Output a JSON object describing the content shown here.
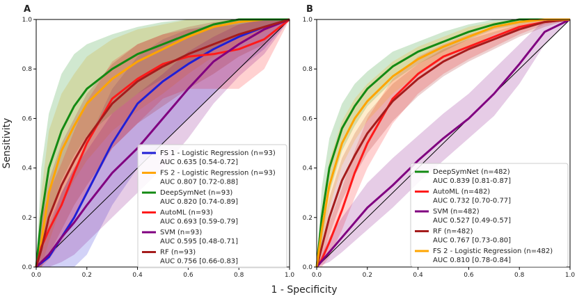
{
  "figure": {
    "shared_ylabel": "Sensitivity",
    "shared_xlabel": "1 - Specificity"
  },
  "chart_data": [
    {
      "panel": "A",
      "type": "line",
      "title": "",
      "xlabel": "1 - Specificity",
      "ylabel": "Sensitivity",
      "xlim": [
        0,
        1
      ],
      "ylim": [
        0,
        1
      ],
      "xticks": [
        "0.0",
        "0.2",
        "0.4",
        "0.6",
        "0.8",
        "1.0"
      ],
      "yticks": [
        "0.0",
        "0.2",
        "0.4",
        "0.6",
        "0.8",
        "1.0"
      ],
      "legend_position": "bottom-right",
      "diagonal": true,
      "series": [
        {
          "name": "FS 1 - Logistic Regression (n=93)",
          "auc": "AUC 0.635 [0.54-0.72]",
          "color": "#1f1fd6",
          "x": [
            0,
            0.05,
            0.1,
            0.15,
            0.2,
            0.3,
            0.4,
            0.5,
            0.6,
            0.7,
            0.8,
            0.9,
            1.0
          ],
          "y": [
            0,
            0.04,
            0.12,
            0.2,
            0.3,
            0.5,
            0.66,
            0.75,
            0.82,
            0.88,
            0.93,
            0.97,
            1.0
          ],
          "lower": [
            0,
            0,
            0,
            0,
            0.05,
            0.25,
            0.4,
            0.5,
            0.6,
            0.7,
            0.8,
            0.88,
            1.0
          ],
          "upper": [
            0,
            0.15,
            0.3,
            0.4,
            0.5,
            0.72,
            0.85,
            0.92,
            0.96,
            0.98,
            1.0,
            1.0,
            1.0
          ]
        },
        {
          "name": "FS 2 - Logistic Regression (n=93)",
          "auc": "AUC 0.807 [0.72-0.88]",
          "color": "#ffa500",
          "x": [
            0,
            0.02,
            0.05,
            0.1,
            0.15,
            0.2,
            0.3,
            0.4,
            0.5,
            0.6,
            0.7,
            0.8,
            0.9,
            1.0
          ],
          "y": [
            0,
            0.1,
            0.3,
            0.47,
            0.57,
            0.66,
            0.76,
            0.83,
            0.88,
            0.93,
            0.97,
            0.99,
            1.0,
            1.0
          ],
          "lower": [
            0,
            0,
            0.1,
            0.25,
            0.35,
            0.43,
            0.55,
            0.63,
            0.7,
            0.78,
            0.85,
            0.9,
            0.95,
            1.0
          ],
          "upper": [
            0,
            0.3,
            0.55,
            0.7,
            0.78,
            0.85,
            0.92,
            0.96,
            0.98,
            1.0,
            1.0,
            1.0,
            1.0,
            1.0
          ]
        },
        {
          "name": "DeepSymNet (n=93)",
          "auc": "AUC 0.820 [0.74-0.89]",
          "color": "#138a13",
          "x": [
            0,
            0.02,
            0.05,
            0.1,
            0.15,
            0.2,
            0.3,
            0.4,
            0.5,
            0.6,
            0.7,
            0.8,
            0.9,
            1.0
          ],
          "y": [
            0,
            0.2,
            0.4,
            0.55,
            0.65,
            0.72,
            0.8,
            0.86,
            0.9,
            0.94,
            0.98,
            1.0,
            1.0,
            1.0
          ],
          "lower": [
            0,
            0.05,
            0.2,
            0.35,
            0.45,
            0.53,
            0.62,
            0.7,
            0.76,
            0.82,
            0.88,
            0.93,
            0.97,
            1.0
          ],
          "upper": [
            0,
            0.4,
            0.62,
            0.78,
            0.86,
            0.9,
            0.94,
            0.97,
            0.99,
            1.0,
            1.0,
            1.0,
            1.0,
            1.0
          ]
        },
        {
          "name": "AutoML (n=93)",
          "auc": "AUC 0.693 [0.59-0.79]",
          "color": "#ff1a1a",
          "x": [
            0,
            0.02,
            0.05,
            0.1,
            0.15,
            0.2,
            0.3,
            0.4,
            0.5,
            0.6,
            0.7,
            0.8,
            0.9,
            1.0
          ],
          "y": [
            0,
            0.08,
            0.15,
            0.25,
            0.38,
            0.5,
            0.68,
            0.76,
            0.82,
            0.85,
            0.86,
            0.88,
            0.92,
            1.0
          ],
          "lower": [
            0,
            0,
            0.03,
            0.1,
            0.2,
            0.3,
            0.48,
            0.58,
            0.68,
            0.72,
            0.72,
            0.72,
            0.8,
            1.0
          ],
          "upper": [
            0,
            0.2,
            0.3,
            0.42,
            0.55,
            0.67,
            0.83,
            0.9,
            0.94,
            0.96,
            0.97,
            0.98,
            1.0,
            1.0
          ]
        },
        {
          "name": "SVM (n=93)",
          "auc": "AUC 0.595 [0.48-0.71]",
          "color": "#800080",
          "x": [
            0,
            0.05,
            0.1,
            0.15,
            0.2,
            0.3,
            0.4,
            0.5,
            0.6,
            0.7,
            0.8,
            0.9,
            1.0
          ],
          "y": [
            0,
            0.05,
            0.12,
            0.18,
            0.25,
            0.38,
            0.48,
            0.6,
            0.72,
            0.83,
            0.9,
            0.96,
            1.0
          ],
          "lower": [
            0,
            0,
            0.02,
            0.05,
            0.1,
            0.2,
            0.3,
            0.4,
            0.52,
            0.66,
            0.77,
            0.86,
            1.0
          ],
          "upper": [
            0,
            0.18,
            0.3,
            0.4,
            0.47,
            0.62,
            0.7,
            0.78,
            0.87,
            0.93,
            0.98,
            1.0,
            1.0
          ]
        },
        {
          "name": "RF (n=93)",
          "auc": "AUC 0.756 [0.66-0.83]",
          "color": "#a51c1c",
          "x": [
            0,
            0.02,
            0.05,
            0.1,
            0.15,
            0.2,
            0.3,
            0.4,
            0.5,
            0.6,
            0.7,
            0.8,
            0.9,
            1.0
          ],
          "y": [
            0,
            0.07,
            0.2,
            0.33,
            0.43,
            0.52,
            0.66,
            0.75,
            0.81,
            0.86,
            0.9,
            0.94,
            0.97,
            1.0
          ],
          "lower": [
            0,
            0,
            0.05,
            0.15,
            0.25,
            0.33,
            0.48,
            0.58,
            0.65,
            0.72,
            0.78,
            0.85,
            0.9,
            1.0
          ],
          "upper": [
            0,
            0.2,
            0.35,
            0.5,
            0.6,
            0.7,
            0.82,
            0.9,
            0.94,
            0.97,
            0.99,
            1.0,
            1.0,
            1.0
          ]
        }
      ],
      "legend": [
        {
          "label": "FS 1 - Logistic Regression (n=93)",
          "auc": "AUC 0.635 [0.54-0.72]",
          "color": "#1f1fd6"
        },
        {
          "label": "FS 2 - Logistic Regression (n=93)",
          "auc": "AUC 0.807 [0.72-0.88]",
          "color": "#ffa500"
        },
        {
          "label": "DeepSymNet (n=93)",
          "auc": "AUC 0.820 [0.74-0.89]",
          "color": "#138a13"
        },
        {
          "label": "AutoML (n=93)",
          "auc": "AUC 0.693 [0.59-0.79]",
          "color": "#ff1a1a"
        },
        {
          "label": "SVM (n=93)",
          "auc": "AUC 0.595 [0.48-0.71]",
          "color": "#800080"
        },
        {
          "label": "RF (n=93)",
          "auc": "AUC 0.756 [0.66-0.83]",
          "color": "#a51c1c"
        }
      ]
    },
    {
      "panel": "B",
      "type": "line",
      "title": "",
      "xlabel": "1 - Specificity",
      "ylabel": "Sensitivity",
      "xlim": [
        0,
        1
      ],
      "ylim": [
        0,
        1
      ],
      "xticks": [
        "0.0",
        "0.2",
        "0.4",
        "0.6",
        "0.8",
        "1.0"
      ],
      "yticks": [
        "0.0",
        "0.2",
        "0.4",
        "0.6",
        "0.8",
        "1.0"
      ],
      "legend_position": "bottom-right",
      "diagonal": true,
      "series": [
        {
          "name": "DeepSymNet (n=482)",
          "auc": "AUC 0.839 [0.81-0.87]",
          "color": "#138a13",
          "x": [
            0,
            0.02,
            0.05,
            0.1,
            0.15,
            0.2,
            0.3,
            0.4,
            0.5,
            0.6,
            0.7,
            0.8,
            0.9,
            1.0
          ],
          "y": [
            0,
            0.2,
            0.4,
            0.56,
            0.65,
            0.72,
            0.81,
            0.87,
            0.91,
            0.95,
            0.98,
            1.0,
            1.0,
            1.0
          ],
          "lower": [
            0,
            0.1,
            0.3,
            0.47,
            0.57,
            0.65,
            0.75,
            0.82,
            0.87,
            0.92,
            0.96,
            0.98,
            1.0,
            1.0
          ],
          "upper": [
            0,
            0.32,
            0.52,
            0.66,
            0.74,
            0.79,
            0.87,
            0.91,
            0.95,
            0.98,
            1.0,
            1.0,
            1.0,
            1.0
          ]
        },
        {
          "name": "AutoML (n=482)",
          "auc": "AUC 0.732 [0.70-0.77]",
          "color": "#ff1a1a",
          "x": [
            0,
            0.02,
            0.05,
            0.1,
            0.15,
            0.2,
            0.3,
            0.4,
            0.5,
            0.6,
            0.7,
            0.8,
            0.9,
            1.0
          ],
          "y": [
            0,
            0.03,
            0.1,
            0.23,
            0.38,
            0.5,
            0.68,
            0.78,
            0.85,
            0.89,
            0.93,
            0.97,
            0.99,
            1.0
          ],
          "lower": [
            0,
            0,
            0.04,
            0.15,
            0.28,
            0.4,
            0.58,
            0.7,
            0.78,
            0.84,
            0.89,
            0.94,
            0.98,
            1.0
          ],
          "upper": [
            0,
            0.08,
            0.18,
            0.32,
            0.47,
            0.6,
            0.76,
            0.85,
            0.9,
            0.94,
            0.97,
            0.99,
            1.0,
            1.0
          ]
        },
        {
          "name": "SVM (n=482)",
          "auc": "AUC 0.527 [0.49-0.57]",
          "color": "#800080",
          "x": [
            0,
            0.05,
            0.1,
            0.2,
            0.3,
            0.4,
            0.5,
            0.6,
            0.7,
            0.8,
            0.9,
            1.0
          ],
          "y": [
            0,
            0.06,
            0.12,
            0.24,
            0.33,
            0.43,
            0.52,
            0.6,
            0.7,
            0.82,
            0.95,
            1.0
          ],
          "lower": [
            0,
            0.02,
            0.06,
            0.15,
            0.24,
            0.34,
            0.43,
            0.52,
            0.61,
            0.74,
            0.9,
            1.0
          ],
          "upper": [
            0,
            0.12,
            0.2,
            0.34,
            0.44,
            0.53,
            0.62,
            0.7,
            0.8,
            0.9,
            1.0,
            1.0
          ]
        },
        {
          "name": "RF (n=482)",
          "auc": "AUC 0.767 [0.73-0.80]",
          "color": "#a51c1c",
          "x": [
            0,
            0.02,
            0.05,
            0.1,
            0.15,
            0.2,
            0.3,
            0.4,
            0.5,
            0.6,
            0.7,
            0.8,
            0.9,
            1.0
          ],
          "y": [
            0,
            0.08,
            0.2,
            0.35,
            0.45,
            0.54,
            0.67,
            0.76,
            0.83,
            0.88,
            0.92,
            0.96,
            0.99,
            1.0
          ],
          "lower": [
            0,
            0.03,
            0.13,
            0.27,
            0.37,
            0.46,
            0.59,
            0.69,
            0.77,
            0.83,
            0.88,
            0.93,
            0.97,
            1.0
          ],
          "upper": [
            0,
            0.14,
            0.28,
            0.44,
            0.54,
            0.62,
            0.74,
            0.82,
            0.88,
            0.92,
            0.95,
            0.98,
            1.0,
            1.0
          ]
        },
        {
          "name": "FS 2 - Logistic Regression (n=482)",
          "auc": "AUC 0.810 [0.78-0.84]",
          "color": "#ffa500",
          "x": [
            0,
            0.02,
            0.05,
            0.1,
            0.15,
            0.2,
            0.3,
            0.4,
            0.5,
            0.6,
            0.7,
            0.8,
            0.9,
            1.0
          ],
          "y": [
            0,
            0.15,
            0.33,
            0.5,
            0.6,
            0.67,
            0.77,
            0.84,
            0.89,
            0.93,
            0.97,
            0.99,
            1.0,
            1.0
          ],
          "lower": [
            0,
            0.07,
            0.24,
            0.41,
            0.51,
            0.59,
            0.7,
            0.78,
            0.84,
            0.89,
            0.94,
            0.97,
            0.99,
            1.0
          ],
          "upper": [
            0,
            0.24,
            0.43,
            0.59,
            0.68,
            0.74,
            0.83,
            0.89,
            0.93,
            0.97,
            0.99,
            1.0,
            1.0,
            1.0
          ]
        }
      ],
      "legend": [
        {
          "label": "DeepSymNet (n=482)",
          "auc": "AUC 0.839 [0.81-0.87]",
          "color": "#138a13"
        },
        {
          "label": "AutoML (n=482)",
          "auc": "AUC 0.732 [0.70-0.77]",
          "color": "#ff1a1a"
        },
        {
          "label": "SVM (n=482)",
          "auc": "AUC 0.527 [0.49-0.57]",
          "color": "#800080"
        },
        {
          "label": "RF (n=482)",
          "auc": "AUC 0.767 [0.73-0.80]",
          "color": "#a51c1c"
        },
        {
          "label": "FS 2 - Logistic Regression (n=482)",
          "auc": "AUC 0.810 [0.78-0.84]",
          "color": "#ffa500"
        }
      ]
    }
  ]
}
